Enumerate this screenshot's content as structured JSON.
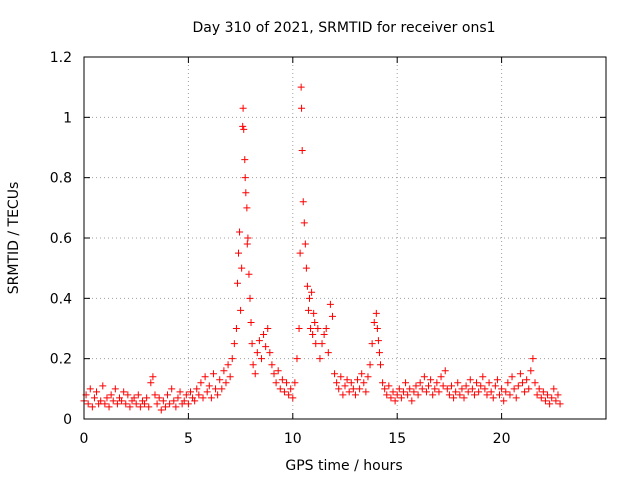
{
  "chart_data": {
    "type": "scatter",
    "title": "Day 310 of 2021, SRMTID for receiver ons1",
    "xlabel": "GPS time / hours",
    "ylabel": "SRMTID / TECUs",
    "xlim": [
      0,
      25
    ],
    "ylim": [
      0,
      1.2
    ],
    "xticks": [
      0,
      5,
      10,
      15,
      20
    ],
    "xtick_labels": [
      "0",
      "5",
      "10",
      "15",
      "20"
    ],
    "yticks": [
      0,
      0.2,
      0.4,
      0.6,
      0.8,
      1.0,
      1.2
    ],
    "ytick_labels": [
      "0",
      "0.2",
      "0.4",
      "0.6",
      "0.8",
      "1",
      "1.2"
    ],
    "grid": true,
    "marker": "+",
    "marker_color": "#ff0000",
    "series": [
      {
        "name": "SRMTID",
        "points": [
          [
            0.0,
            0.06
          ],
          [
            0.1,
            0.08
          ],
          [
            0.2,
            0.05
          ],
          [
            0.3,
            0.1
          ],
          [
            0.4,
            0.04
          ],
          [
            0.5,
            0.07
          ],
          [
            0.6,
            0.09
          ],
          [
            0.7,
            0.05
          ],
          [
            0.8,
            0.06
          ],
          [
            0.9,
            0.11
          ],
          [
            1.0,
            0.05
          ],
          [
            1.1,
            0.07
          ],
          [
            1.2,
            0.04
          ],
          [
            1.3,
            0.08
          ],
          [
            1.4,
            0.06
          ],
          [
            1.5,
            0.1
          ],
          [
            1.6,
            0.05
          ],
          [
            1.7,
            0.07
          ],
          [
            1.8,
            0.06
          ],
          [
            1.9,
            0.09
          ],
          [
            2.0,
            0.05
          ],
          [
            2.1,
            0.08
          ],
          [
            2.2,
            0.04
          ],
          [
            2.3,
            0.06
          ],
          [
            2.4,
            0.07
          ],
          [
            2.5,
            0.05
          ],
          [
            2.6,
            0.08
          ],
          [
            2.7,
            0.04
          ],
          [
            2.8,
            0.06
          ],
          [
            2.9,
            0.05
          ],
          [
            3.0,
            0.07
          ],
          [
            3.1,
            0.04
          ],
          [
            3.2,
            0.12
          ],
          [
            3.3,
            0.14
          ],
          [
            3.4,
            0.08
          ],
          [
            3.5,
            0.05
          ],
          [
            3.6,
            0.07
          ],
          [
            3.7,
            0.03
          ],
          [
            3.8,
            0.06
          ],
          [
            3.9,
            0.04
          ],
          [
            4.0,
            0.08
          ],
          [
            4.1,
            0.05
          ],
          [
            4.2,
            0.1
          ],
          [
            4.3,
            0.06
          ],
          [
            4.4,
            0.04
          ],
          [
            4.5,
            0.07
          ],
          [
            4.6,
            0.09
          ],
          [
            4.7,
            0.05
          ],
          [
            4.8,
            0.06
          ],
          [
            4.9,
            0.08
          ],
          [
            5.0,
            0.05
          ],
          [
            5.1,
            0.09
          ],
          [
            5.2,
            0.07
          ],
          [
            5.3,
            0.06
          ],
          [
            5.4,
            0.1
          ],
          [
            5.5,
            0.08
          ],
          [
            5.6,
            0.12
          ],
          [
            5.7,
            0.07
          ],
          [
            5.8,
            0.14
          ],
          [
            5.9,
            0.09
          ],
          [
            6.0,
            0.11
          ],
          [
            6.1,
            0.07
          ],
          [
            6.2,
            0.15
          ],
          [
            6.3,
            0.1
          ],
          [
            6.4,
            0.08
          ],
          [
            6.5,
            0.13
          ],
          [
            6.6,
            0.1
          ],
          [
            6.7,
            0.16
          ],
          [
            6.8,
            0.12
          ],
          [
            6.9,
            0.18
          ],
          [
            7.0,
            0.14
          ],
          [
            7.1,
            0.2
          ],
          [
            7.2,
            0.25
          ],
          [
            7.3,
            0.3
          ],
          [
            7.35,
            0.45
          ],
          [
            7.4,
            0.55
          ],
          [
            7.45,
            0.62
          ],
          [
            7.5,
            0.36
          ],
          [
            7.55,
            0.5
          ],
          [
            7.6,
            0.97
          ],
          [
            7.62,
            1.03
          ],
          [
            7.65,
            0.96
          ],
          [
            7.7,
            0.86
          ],
          [
            7.72,
            0.8
          ],
          [
            7.75,
            0.75
          ],
          [
            7.8,
            0.7
          ],
          [
            7.82,
            0.58
          ],
          [
            7.85,
            0.6
          ],
          [
            7.9,
            0.48
          ],
          [
            7.95,
            0.4
          ],
          [
            8.0,
            0.32
          ],
          [
            8.05,
            0.25
          ],
          [
            8.1,
            0.18
          ],
          [
            8.2,
            0.15
          ],
          [
            8.3,
            0.22
          ],
          [
            8.4,
            0.26
          ],
          [
            8.5,
            0.2
          ],
          [
            8.6,
            0.28
          ],
          [
            8.7,
            0.24
          ],
          [
            8.8,
            0.3
          ],
          [
            8.9,
            0.22
          ],
          [
            9.0,
            0.18
          ],
          [
            9.1,
            0.15
          ],
          [
            9.2,
            0.12
          ],
          [
            9.3,
            0.16
          ],
          [
            9.4,
            0.1
          ],
          [
            9.5,
            0.13
          ],
          [
            9.6,
            0.09
          ],
          [
            9.7,
            0.12
          ],
          [
            9.8,
            0.08
          ],
          [
            9.9,
            0.1
          ],
          [
            10.0,
            0.07
          ],
          [
            10.1,
            0.12
          ],
          [
            10.2,
            0.2
          ],
          [
            10.3,
            0.3
          ],
          [
            10.35,
            0.55
          ],
          [
            10.4,
            1.1
          ],
          [
            10.42,
            1.03
          ],
          [
            10.45,
            0.89
          ],
          [
            10.5,
            0.72
          ],
          [
            10.55,
            0.65
          ],
          [
            10.6,
            0.58
          ],
          [
            10.65,
            0.5
          ],
          [
            10.7,
            0.44
          ],
          [
            10.75,
            0.36
          ],
          [
            10.8,
            0.4
          ],
          [
            10.85,
            0.3
          ],
          [
            10.9,
            0.42
          ],
          [
            10.95,
            0.28
          ],
          [
            11.0,
            0.35
          ],
          [
            11.05,
            0.32
          ],
          [
            11.1,
            0.25
          ],
          [
            11.2,
            0.3
          ],
          [
            11.3,
            0.2
          ],
          [
            11.4,
            0.25
          ],
          [
            11.5,
            0.28
          ],
          [
            11.6,
            0.3
          ],
          [
            11.7,
            0.22
          ],
          [
            11.8,
            0.38
          ],
          [
            11.9,
            0.34
          ],
          [
            12.0,
            0.15
          ],
          [
            12.1,
            0.12
          ],
          [
            12.2,
            0.1
          ],
          [
            12.3,
            0.14
          ],
          [
            12.4,
            0.08
          ],
          [
            12.5,
            0.11
          ],
          [
            12.6,
            0.13
          ],
          [
            12.7,
            0.09
          ],
          [
            12.8,
            0.12
          ],
          [
            12.9,
            0.1
          ],
          [
            13.0,
            0.08
          ],
          [
            13.1,
            0.13
          ],
          [
            13.2,
            0.1
          ],
          [
            13.3,
            0.15
          ],
          [
            13.4,
            0.12
          ],
          [
            13.5,
            0.09
          ],
          [
            13.6,
            0.14
          ],
          [
            13.7,
            0.18
          ],
          [
            13.8,
            0.25
          ],
          [
            13.9,
            0.32
          ],
          [
            14.0,
            0.35
          ],
          [
            14.05,
            0.3
          ],
          [
            14.1,
            0.26
          ],
          [
            14.15,
            0.22
          ],
          [
            14.2,
            0.18
          ],
          [
            14.3,
            0.12
          ],
          [
            14.4,
            0.1
          ],
          [
            14.5,
            0.08
          ],
          [
            14.6,
            0.11
          ],
          [
            14.7,
            0.07
          ],
          [
            14.8,
            0.09
          ],
          [
            14.9,
            0.06
          ],
          [
            15.0,
            0.08
          ],
          [
            15.1,
            0.1
          ],
          [
            15.2,
            0.07
          ],
          [
            15.3,
            0.09
          ],
          [
            15.4,
            0.12
          ],
          [
            15.5,
            0.08
          ],
          [
            15.6,
            0.1
          ],
          [
            15.7,
            0.06
          ],
          [
            15.8,
            0.09
          ],
          [
            15.9,
            0.11
          ],
          [
            16.0,
            0.08
          ],
          [
            16.1,
            0.12
          ],
          [
            16.2,
            0.1
          ],
          [
            16.3,
            0.14
          ],
          [
            16.4,
            0.09
          ],
          [
            16.5,
            0.11
          ],
          [
            16.6,
            0.13
          ],
          [
            16.7,
            0.08
          ],
          [
            16.8,
            0.1
          ],
          [
            16.9,
            0.12
          ],
          [
            17.0,
            0.09
          ],
          [
            17.1,
            0.14
          ],
          [
            17.2,
            0.11
          ],
          [
            17.3,
            0.16
          ],
          [
            17.4,
            0.1
          ],
          [
            17.5,
            0.08
          ],
          [
            17.6,
            0.11
          ],
          [
            17.7,
            0.07
          ],
          [
            17.8,
            0.09
          ],
          [
            17.9,
            0.12
          ],
          [
            18.0,
            0.08
          ],
          [
            18.1,
            0.1
          ],
          [
            18.2,
            0.07
          ],
          [
            18.3,
            0.11
          ],
          [
            18.4,
            0.09
          ],
          [
            18.5,
            0.13
          ],
          [
            18.6,
            0.1
          ],
          [
            18.7,
            0.08
          ],
          [
            18.8,
            0.12
          ],
          [
            18.9,
            0.09
          ],
          [
            19.0,
            0.11
          ],
          [
            19.1,
            0.14
          ],
          [
            19.2,
            0.1
          ],
          [
            19.3,
            0.08
          ],
          [
            19.4,
            0.12
          ],
          [
            19.5,
            0.09
          ],
          [
            19.6,
            0.07
          ],
          [
            19.7,
            0.11
          ],
          [
            19.8,
            0.13
          ],
          [
            19.9,
            0.08
          ],
          [
            20.0,
            0.1
          ],
          [
            20.1,
            0.06
          ],
          [
            20.2,
            0.09
          ],
          [
            20.3,
            0.12
          ],
          [
            20.4,
            0.08
          ],
          [
            20.5,
            0.14
          ],
          [
            20.6,
            0.1
          ],
          [
            20.7,
            0.07
          ],
          [
            20.8,
            0.11
          ],
          [
            20.9,
            0.15
          ],
          [
            21.0,
            0.12
          ],
          [
            21.1,
            0.09
          ],
          [
            21.2,
            0.13
          ],
          [
            21.3,
            0.1
          ],
          [
            21.4,
            0.16
          ],
          [
            21.5,
            0.2
          ],
          [
            21.6,
            0.12
          ],
          [
            21.7,
            0.08
          ],
          [
            21.8,
            0.1
          ],
          [
            21.9,
            0.07
          ],
          [
            22.0,
            0.09
          ],
          [
            22.1,
            0.06
          ],
          [
            22.2,
            0.08
          ],
          [
            22.3,
            0.05
          ],
          [
            22.4,
            0.07
          ],
          [
            22.5,
            0.1
          ],
          [
            22.6,
            0.06
          ],
          [
            22.7,
            0.08
          ],
          [
            22.8,
            0.05
          ]
        ]
      }
    ]
  }
}
